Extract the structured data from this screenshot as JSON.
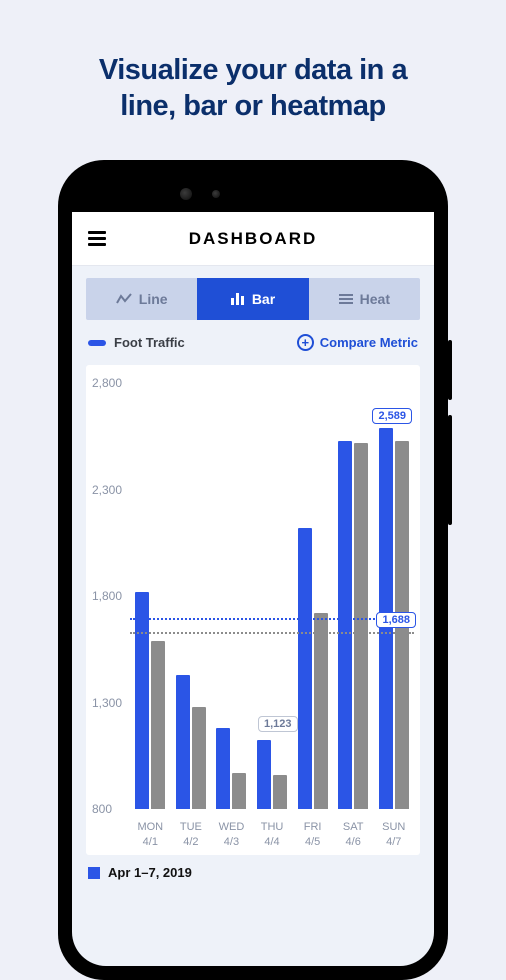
{
  "headline_line1": "Visualize your data in a",
  "headline_line2": "line, bar or heatmap",
  "topbar": {
    "title": "DASHBOARD"
  },
  "tabs": {
    "line": "Line",
    "bar": "Bar",
    "heat": "Heat",
    "active": "bar"
  },
  "legend": {
    "series_label": "Foot Traffic",
    "compare_label": "Compare Metric"
  },
  "chart": {
    "type": "bar",
    "y_min": 800,
    "y_max": 2800,
    "y_ticks": [
      2800,
      2300,
      1800,
      1300,
      800
    ],
    "primary_color": "#2b55e6",
    "secondary_color": "#8c8c8c",
    "ref_primary_value": 1688,
    "ref_secondary_value": 1620,
    "columns": [
      {
        "day": "MON",
        "date": "4/1",
        "primary": 1820,
        "secondary": 1590
      },
      {
        "day": "TUE",
        "date": "4/2",
        "primary": 1430,
        "secondary": 1280
      },
      {
        "day": "WED",
        "date": "4/3",
        "primary": 1180,
        "secondary": 970
      },
      {
        "day": "THU",
        "date": "4/4",
        "primary": 1123,
        "secondary": 960
      },
      {
        "day": "FRI",
        "date": "4/5",
        "primary": 2120,
        "secondary": 1720
      },
      {
        "day": "SAT",
        "date": "4/6",
        "primary": 2530,
        "secondary": 2520
      },
      {
        "day": "SUN",
        "date": "4/7",
        "primary": 2589,
        "secondary": 2530
      }
    ],
    "callouts": {
      "sun": "2,589",
      "thu": "1,123",
      "ref": "1,688"
    }
  },
  "footer": {
    "date_range": "Apr 1–7, 2019"
  },
  "colors": {
    "page_bg": "#eef0f8",
    "headline": "#0b2f6b",
    "accent": "#1f4fd6",
    "tab_bg": "#c9d3ea",
    "tab_inactive_text": "#6d7a99",
    "axis_text": "#8a93a6"
  }
}
